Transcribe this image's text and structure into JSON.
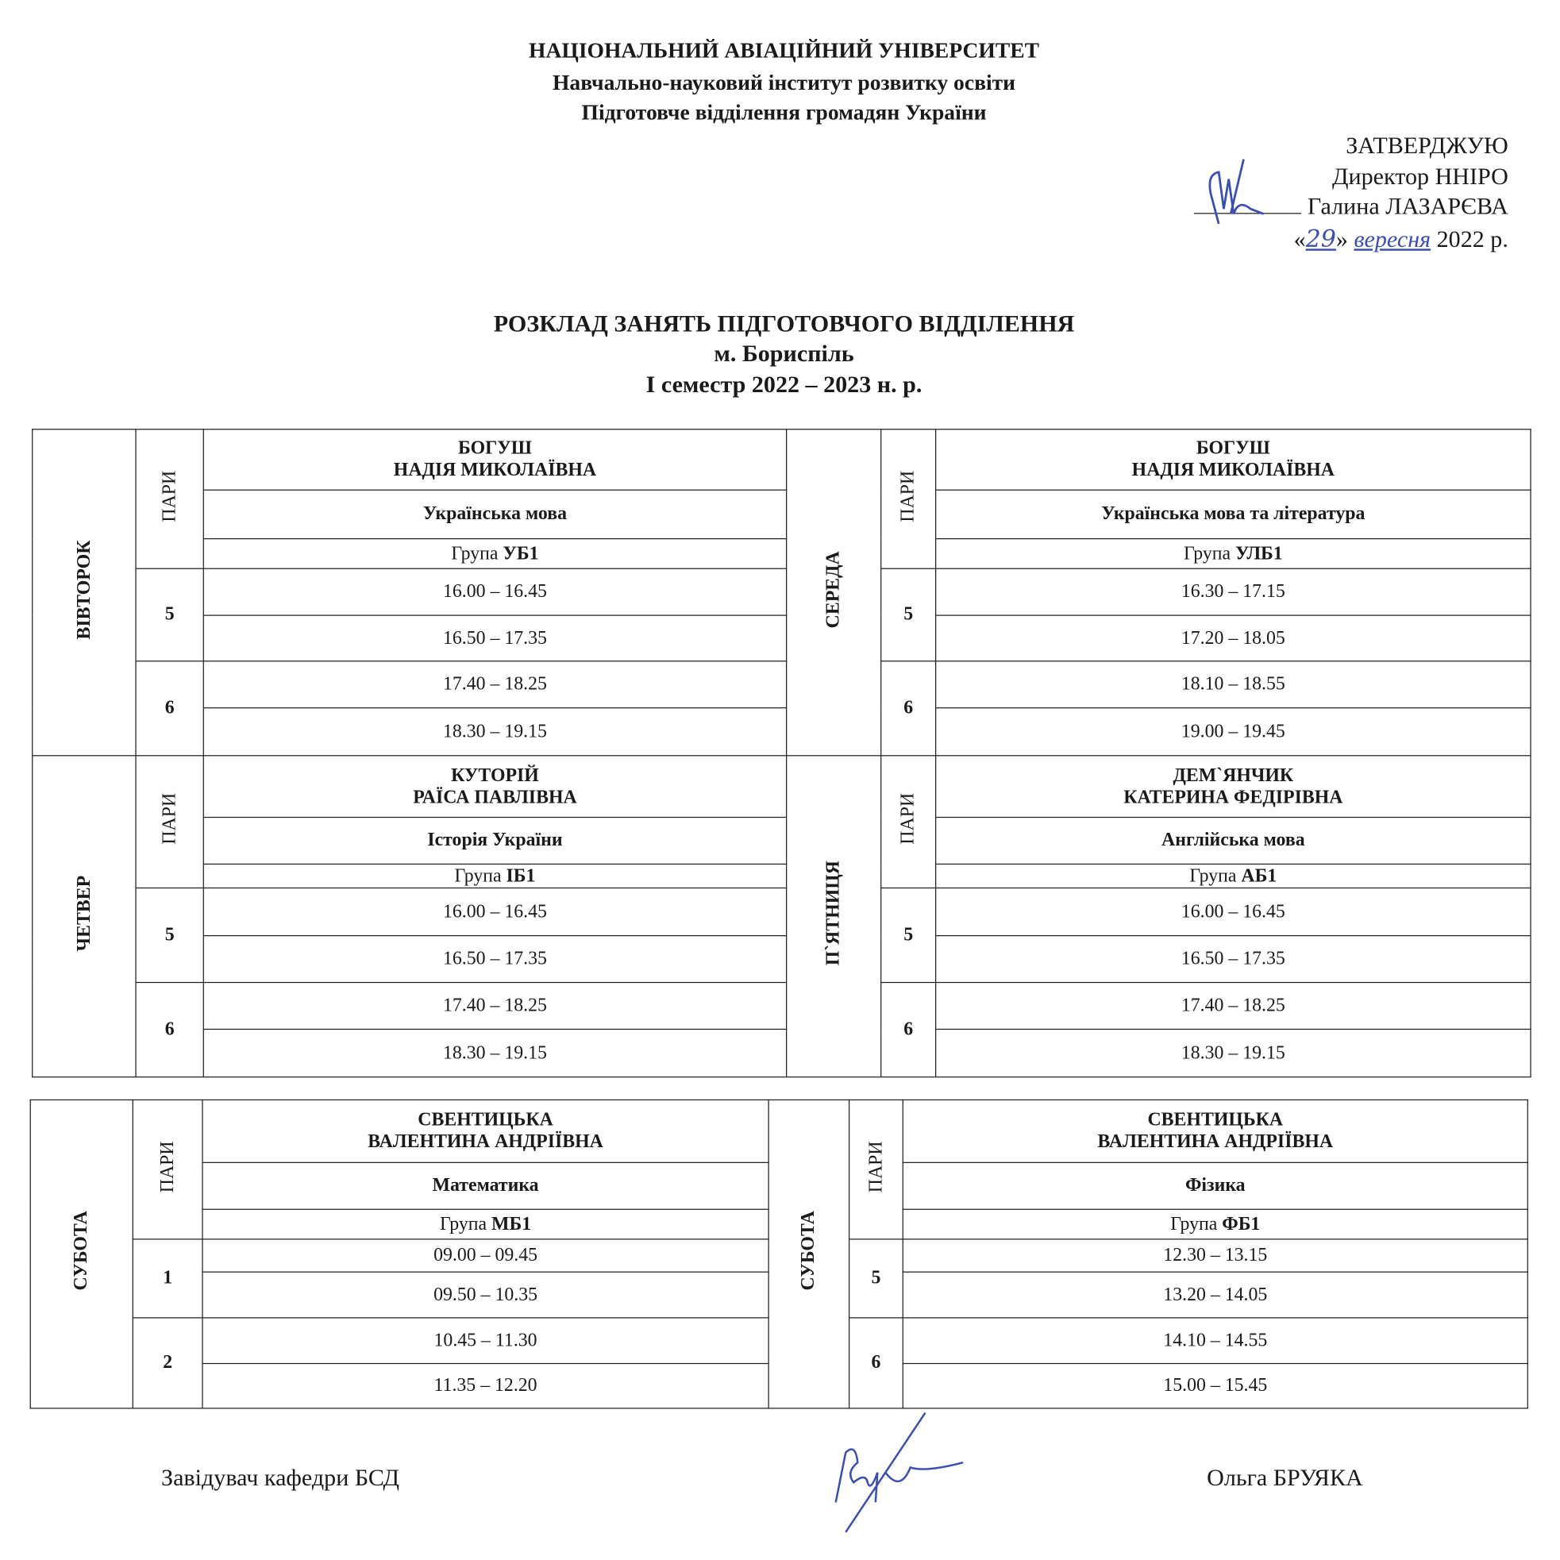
{
  "header": {
    "university": "НАЦІОНАЛЬНИЙ АВІАЦІЙНИЙ УНІВЕРСИТЕТ",
    "institute": "Навчально-науковий інститут розвитку освіти",
    "department": "Підготовче відділення громадян України"
  },
  "approval": {
    "line1": "ЗАТВЕРДЖУЮ",
    "line2": "Директор ННІРО",
    "name": "Галина ЛАЗАРЄВА",
    "date_open": "«",
    "day": "29",
    "date_close": "»",
    "month": "вересня",
    "year": "2022 р."
  },
  "title": {
    "line1": "РОЗКЛАД ЗАНЯТЬ ПІДГОТОВЧОГО ВІДДІЛЕННЯ",
    "line2": "м. Бориспіль",
    "line3": "І семестр 2022 – 2023 н. р."
  },
  "pairs_label": "ПАРИ",
  "group_prefix": "Група",
  "tables": [
    {
      "blocks": [
        [
          {
            "day": "ВІВТОРОК",
            "name1": "БОГУШ",
            "name2": "НАДІЯ МИКОЛАЇВНА",
            "subject": "Українська мова",
            "group": "УБ1",
            "pairs": [
              {
                "num": "5",
                "times": [
                  "16.00 – 16.45",
                  "16.50 – 17.35"
                ]
              },
              {
                "num": "6",
                "times": [
                  "17.40 – 18.25",
                  "18.30 – 19.15"
                ]
              }
            ]
          },
          {
            "day": "СЕРЕДА",
            "name1": "БОГУШ",
            "name2": "НАДІЯ МИКОЛАЇВНА",
            "subject": "Українська мова та література",
            "group": "УЛБ1",
            "pairs": [
              {
                "num": "5",
                "times": [
                  "16.30 – 17.15",
                  "17.20 – 18.05"
                ]
              },
              {
                "num": "6",
                "times": [
                  "18.10 – 18.55",
                  "19.00 – 19.45"
                ]
              }
            ]
          }
        ],
        [
          {
            "day": "ЧЕТВЕР",
            "name1": "КУТОРІЙ",
            "name2": "РАЇСА ПАВЛІВНА",
            "subject": "Історія України",
            "group": "ІБ1",
            "pairs": [
              {
                "num": "5",
                "times": [
                  "16.00 – 16.45",
                  "16.50 – 17.35"
                ]
              },
              {
                "num": "6",
                "times": [
                  "17.40 – 18.25",
                  "18.30 – 19.15"
                ]
              }
            ]
          },
          {
            "day": "П`ЯТНИЦЯ",
            "name1": "ДЕМ`ЯНЧИК",
            "name2": "КАТЕРИНА ФЕДІРІВНА",
            "subject": "Англійська мова",
            "group": "АБ1",
            "pairs": [
              {
                "num": "5",
                "times": [
                  "16.00 – 16.45",
                  "16.50 – 17.35"
                ]
              },
              {
                "num": "6",
                "times": [
                  "17.40 – 18.25",
                  "18.30 – 19.15"
                ]
              }
            ]
          }
        ]
      ]
    },
    {
      "blocks": [
        [
          {
            "day": "СУБОТА",
            "name1": "СВЕНТИЦЬКА",
            "name2": "ВАЛЕНТИНА АНДРІЇВНА",
            "subject": "Математика",
            "group": "МБ1",
            "pairs": [
              {
                "num": "1",
                "times": [
                  "09.00 – 09.45",
                  "09.50 – 10.35"
                ]
              },
              {
                "num": "2",
                "times": [
                  "10.45 – 11.30",
                  "11.35 – 12.20"
                ]
              }
            ]
          },
          {
            "day": "СУБОТА",
            "name1": "СВЕНТИЦЬКА",
            "name2": "ВАЛЕНТИНА АНДРІЇВНА",
            "subject": "Фізика",
            "group": "ФБ1",
            "pairs": [
              {
                "num": "5",
                "times": [
                  "12.30 – 13.15",
                  "13.20 – 14.05"
                ]
              },
              {
                "num": "6",
                "times": [
                  "14.10 – 14.55",
                  "15.00 – 15.45"
                ]
              }
            ]
          }
        ]
      ]
    }
  ],
  "footer": {
    "position": "Завідувач кафедри БСД",
    "name": "Ольга БРУЯКА"
  },
  "colors": {
    "ink": "#1a1a1a",
    "signature": "#3a4fb0"
  }
}
